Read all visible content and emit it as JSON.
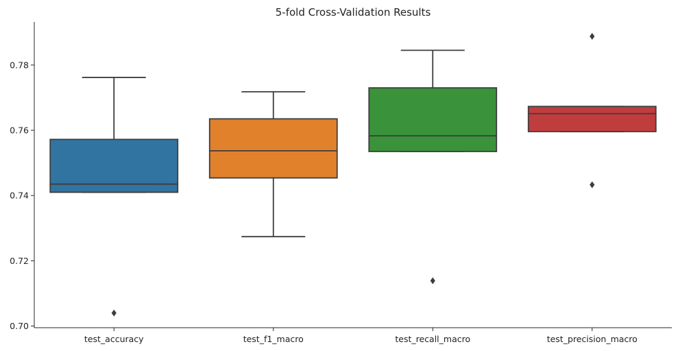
{
  "chart_data": {
    "type": "box",
    "title": "5-fold Cross-Validation Results",
    "xlabel": "",
    "ylabel": "",
    "ylim": [
      0.6995,
      0.7932
    ],
    "yticks": [
      0.7,
      0.72,
      0.74,
      0.76,
      0.78
    ],
    "ytick_labels": [
      "0.70",
      "0.72",
      "0.74",
      "0.76",
      "0.78"
    ],
    "grid": false,
    "legend": "none",
    "categories": [
      "test_accuracy",
      "test_f1_macro",
      "test_recall_macro",
      "test_precision_macro"
    ],
    "boxes": [
      {
        "category": "test_accuracy",
        "color": "#3274a1",
        "whisker_low": 0.741,
        "q1": 0.741,
        "median": 0.7435,
        "q3": 0.7572,
        "whisker_high": 0.7762,
        "outliers": [
          0.704
        ]
      },
      {
        "category": "test_f1_macro",
        "color": "#e1812c",
        "whisker_low": 0.7274,
        "q1": 0.7454,
        "median": 0.7537,
        "q3": 0.7635,
        "whisker_high": 0.7718,
        "outliers": []
      },
      {
        "category": "test_recall_macro",
        "color": "#3a923a",
        "whisker_low": 0.7535,
        "q1": 0.7535,
        "median": 0.7583,
        "q3": 0.773,
        "whisker_high": 0.7845,
        "outliers": [
          0.7139
        ]
      },
      {
        "category": "test_precision_macro",
        "color": "#c03d3e",
        "whisker_low": 0.7596,
        "q1": 0.7596,
        "median": 0.7651,
        "q3": 0.7673,
        "whisker_high": 0.7673,
        "outliers": [
          0.7433,
          0.7888
        ]
      }
    ]
  }
}
